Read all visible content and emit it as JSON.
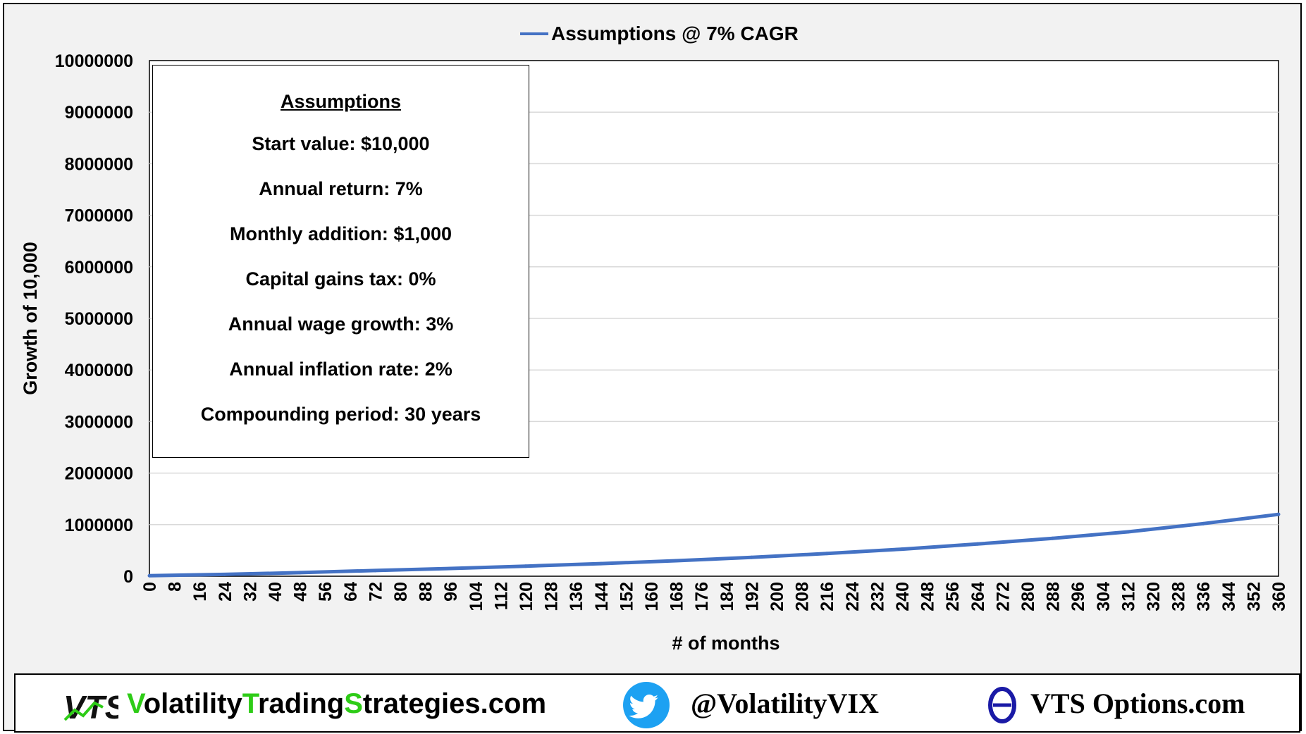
{
  "chart_data": {
    "type": "line",
    "legend_position": "top-center",
    "xlabel": "# of months",
    "ylabel": "Growth of 10,000",
    "xlim": [
      0,
      360
    ],
    "ylim": [
      0,
      10000000
    ],
    "grid": true,
    "x_ticks": [
      0,
      8,
      16,
      24,
      32,
      40,
      48,
      56,
      64,
      72,
      80,
      88,
      96,
      104,
      112,
      120,
      128,
      136,
      144,
      152,
      160,
      168,
      176,
      184,
      192,
      200,
      208,
      216,
      224,
      232,
      240,
      248,
      256,
      264,
      272,
      280,
      288,
      296,
      304,
      312,
      320,
      328,
      336,
      344,
      352,
      360
    ],
    "y_ticks": [
      "0",
      "1000000",
      "2000000",
      "3000000",
      "4000000",
      "5000000",
      "6000000",
      "7000000",
      "8000000",
      "9000000",
      "10000000"
    ],
    "series": [
      {
        "name": "Assumptions @ 7% CAGR",
        "color": "#4472c4",
        "x": [
          0,
          24,
          48,
          72,
          96,
          120,
          144,
          168,
          192,
          216,
          240,
          264,
          288,
          312,
          336,
          360
        ],
        "y": [
          10000,
          35000,
          70000,
          110000,
          150000,
          195000,
          245000,
          300000,
          365000,
          440000,
          525000,
          625000,
          735000,
          860000,
          1020000,
          1200000
        ]
      }
    ]
  },
  "assumptions_box": {
    "title": "Assumptions",
    "rows": [
      "Start value:  $10,000",
      "Annual return:  7%",
      "Monthly addition:  $1,000",
      "Capital gains tax:  0%",
      "Annual wage growth:  3%",
      "Annual inflation rate:  2%",
      "Compounding period:  30 years"
    ]
  },
  "footer": {
    "logo_text": "VTS",
    "site_parts": [
      {
        "text": "V",
        "green": true
      },
      {
        "text": "olatility",
        "green": false
      },
      {
        "text": "T",
        "green": true
      },
      {
        "text": "rading",
        "green": false
      },
      {
        "text": "S",
        "green": true
      },
      {
        "text": "trategies.com",
        "green": false
      }
    ],
    "twitter_handle": "@VolatilityVIX",
    "options_site": "VTS Options.com",
    "icons": [
      "vts-logo-icon",
      "twitter-bird-icon",
      "theta-icon"
    ],
    "colors": {
      "green": "#2ecc17",
      "twitter": "#1da1f2",
      "theta": "#1a1aa6"
    }
  }
}
